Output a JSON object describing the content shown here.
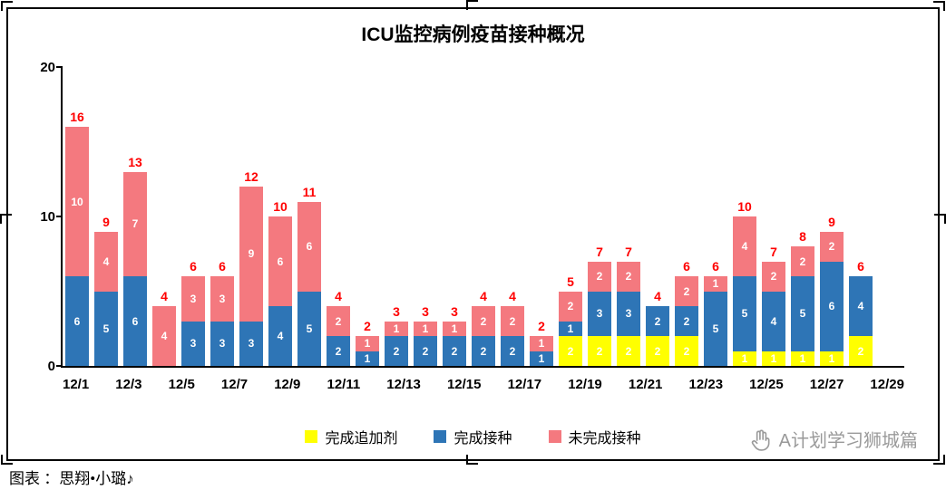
{
  "title": "ICU监控病例疫苗接种概况",
  "caption": "图表 ：思翔•小璐♪",
  "watermark": {
    "text": "A计划学习狮城篇",
    "icon": "hand-icon",
    "color": "#9a9a9a"
  },
  "legend": [
    {
      "label": "完成追加剂",
      "color": "#FFFF00"
    },
    {
      "label": "完成接种",
      "color": "#2E75B6"
    },
    {
      "label": "未完成接种",
      "color": "#F4797F"
    }
  ],
  "chart_data": {
    "type": "bar",
    "stacked": true,
    "title": "ICU监控病例疫苗接种概况",
    "categories": [
      "12/1",
      "12/2",
      "12/3",
      "12/4",
      "12/5",
      "12/6",
      "12/7",
      "12/8",
      "12/9",
      "12/10",
      "12/11",
      "12/12",
      "12/13",
      "12/14",
      "12/15",
      "12/16",
      "12/17",
      "12/18",
      "12/19",
      "12/20",
      "12/21",
      "12/22",
      "12/23",
      "12/24",
      "12/25",
      "12/26",
      "12/27",
      "12/28",
      "12/29"
    ],
    "x_tick_labels": [
      "12/1",
      "12/3",
      "12/5",
      "12/7",
      "12/9",
      "12/11",
      "12/13",
      "12/15",
      "12/17",
      "12/19",
      "12/21",
      "12/23",
      "12/25",
      "12/27",
      "12/29"
    ],
    "series": [
      {
        "name": "完成追加剂",
        "color": "#FFFF00",
        "values": [
          0,
          0,
          0,
          0,
          0,
          0,
          0,
          0,
          0,
          0,
          0,
          0,
          0,
          0,
          0,
          0,
          0,
          2,
          2,
          2,
          2,
          2,
          0,
          1,
          1,
          1,
          1,
          2,
          0
        ]
      },
      {
        "name": "完成接种",
        "color": "#2E75B6",
        "values": [
          6,
          5,
          6,
          0,
          3,
          3,
          3,
          4,
          5,
          2,
          1,
          2,
          2,
          2,
          2,
          2,
          1,
          1,
          3,
          3,
          2,
          2,
          5,
          5,
          4,
          5,
          6,
          4,
          0
        ]
      },
      {
        "name": "未完成接种",
        "color": "#F4797F",
        "values": [
          10,
          4,
          7,
          4,
          3,
          3,
          9,
          6,
          6,
          2,
          1,
          1,
          1,
          1,
          2,
          2,
          1,
          2,
          2,
          2,
          0,
          2,
          1,
          4,
          2,
          2,
          2,
          0,
          0
        ]
      }
    ],
    "totals": [
      16,
      9,
      13,
      4,
      6,
      6,
      12,
      10,
      11,
      4,
      2,
      3,
      3,
      3,
      4,
      4,
      2,
      5,
      7,
      7,
      4,
      6,
      6,
      10,
      7,
      8,
      9,
      6,
      null
    ],
    "ylim": [
      0,
      20
    ],
    "yticks": [
      0,
      10,
      20
    ],
    "grid": false,
    "legend_position": "bottom",
    "total_label_color": "#FF0000",
    "bar_label_color": "#FFFFFF"
  }
}
